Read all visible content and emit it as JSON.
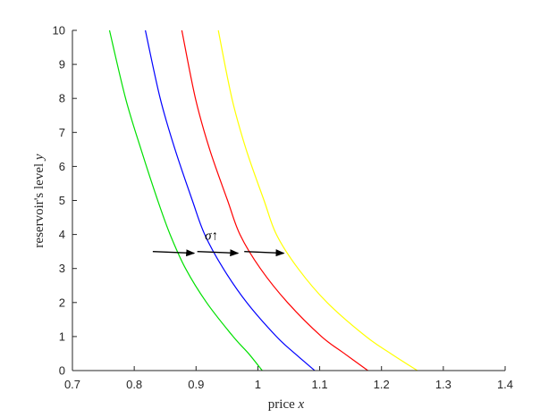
{
  "chart_data": {
    "type": "line",
    "title": "",
    "xlabel_text": "price ",
    "xlabel_var": "x",
    "ylabel_text": "reservoir's level ",
    "ylabel_var": "y",
    "xlim": [
      0.7,
      1.4
    ],
    "ylim": [
      0,
      10
    ],
    "xticks": [
      0.7,
      0.8,
      0.9,
      1.0,
      1.1,
      1.2,
      1.3,
      1.4
    ],
    "xtick_labels": [
      "0.7",
      "0.8",
      "0.9",
      "1",
      "1.1",
      "1.2",
      "1.3",
      "1.4"
    ],
    "yticks": [
      0,
      1,
      2,
      3,
      4,
      5,
      6,
      7,
      8,
      9,
      10
    ],
    "ytick_labels": [
      "0",
      "1",
      "2",
      "3",
      "4",
      "5",
      "6",
      "7",
      "8",
      "9",
      "10"
    ],
    "grid": false,
    "series": [
      {
        "color": "#00e000",
        "points": [
          [
            1.007,
            0
          ],
          [
            0.985,
            0.5
          ],
          [
            0.96,
            1
          ],
          [
            0.917,
            2
          ],
          [
            0.883,
            3
          ],
          [
            0.858,
            4
          ],
          [
            0.838,
            5
          ],
          [
            0.811,
            6.5
          ],
          [
            0.786,
            8
          ],
          [
            0.76,
            10
          ]
        ]
      },
      {
        "color": "#0000ff",
        "points": [
          [
            1.092,
            0
          ],
          [
            1.06,
            0.5
          ],
          [
            1.03,
            1
          ],
          [
            0.982,
            2
          ],
          [
            0.944,
            3
          ],
          [
            0.914,
            4
          ],
          [
            0.894,
            5
          ],
          [
            0.866,
            6.5
          ],
          [
            0.842,
            8
          ],
          [
            0.818,
            10
          ]
        ]
      },
      {
        "color": "#ff0000",
        "points": [
          [
            1.178,
            0
          ],
          [
            1.14,
            0.5
          ],
          [
            1.103,
            1
          ],
          [
            1.048,
            2
          ],
          [
            1.004,
            3
          ],
          [
            0.971,
            4
          ],
          [
            0.951,
            5
          ],
          [
            0.922,
            6.5
          ],
          [
            0.899,
            8
          ],
          [
            0.877,
            10
          ]
        ]
      },
      {
        "color": "#ffff00",
        "points": [
          [
            1.258,
            0
          ],
          [
            1.215,
            0.5
          ],
          [
            1.175,
            1
          ],
          [
            1.112,
            2
          ],
          [
            1.065,
            3
          ],
          [
            1.03,
            4
          ],
          [
            1.01,
            5
          ],
          [
            0.981,
            6.5
          ],
          [
            0.958,
            8
          ],
          [
            0.936,
            10
          ]
        ]
      }
    ],
    "arrows": [
      {
        "from": [
          0.83,
          3.5
        ],
        "to": [
          0.897,
          3.45
        ]
      },
      {
        "from": [
          0.902,
          3.5
        ],
        "to": [
          0.968,
          3.45
        ]
      },
      {
        "from": [
          0.978,
          3.5
        ],
        "to": [
          1.042,
          3.45
        ]
      }
    ],
    "annotation": {
      "var": "σ",
      "symbol": "↑",
      "at": [
        0.925,
        3.85
      ]
    }
  }
}
